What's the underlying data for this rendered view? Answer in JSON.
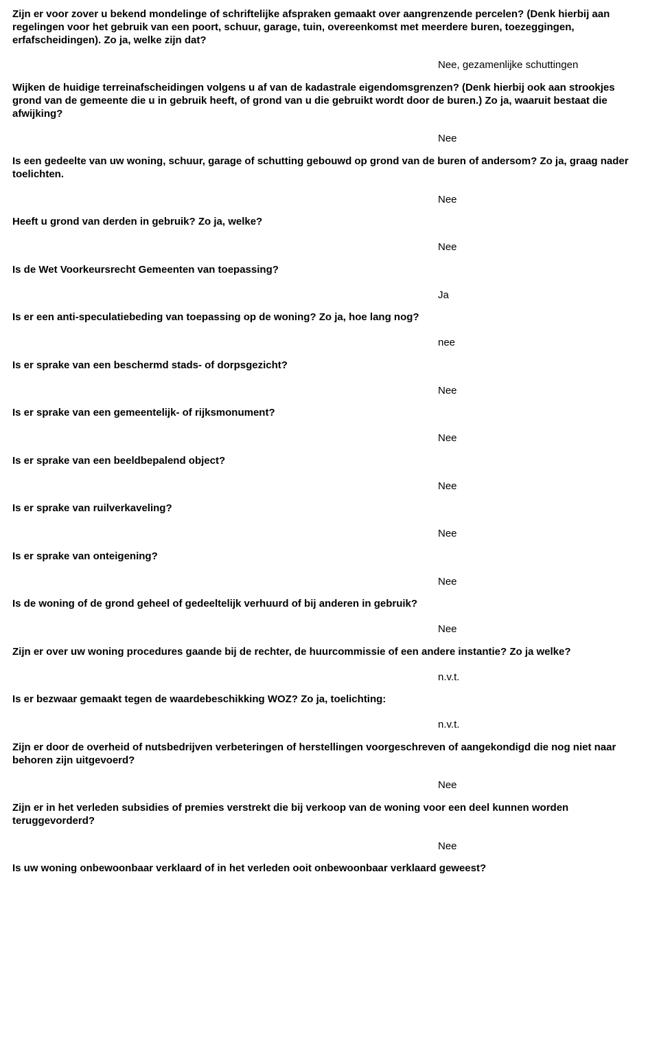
{
  "qa": [
    {
      "q": "Zijn er voor zover u bekend mondelinge of schriftelijke afspraken gemaakt over aangrenzende percelen? (Denk hierbij aan regelingen voor het gebruik van een poort, schuur, garage, tuin, overeenkomst met meerdere buren, toezeggingen, erfafscheidingen). Zo ja, welke zijn dat?",
      "a": "Nee, gezamenlijke schuttingen"
    },
    {
      "q": "Wijken de huidige terreinafscheidingen volgens u af van de kadastrale eigendomsgrenzen? (Denk hierbij ook aan strookjes grond van de gemeente die u in gebruik heeft, of grond van u die gebruikt wordt door de buren.) Zo ja, waaruit bestaat die afwijking?",
      "a": "Nee"
    },
    {
      "q": "Is een gedeelte van uw woning, schuur, garage of schutting gebouwd op grond van de buren of andersom? Zo ja, graag nader toelichten.",
      "a": "Nee"
    },
    {
      "q": "Heeft u grond van derden in gebruik? Zo ja, welke?",
      "a": "Nee"
    },
    {
      "q": "Is de Wet Voorkeursrecht Gemeenten van toepassing?",
      "a": "Ja"
    },
    {
      "q": "Is er een anti-speculatiebeding van toepassing op de woning? Zo ja, hoe lang nog?",
      "a": "nee"
    },
    {
      "q": "Is er sprake van een beschermd stads- of dorpsgezicht?",
      "a": "Nee"
    },
    {
      "q": "Is er sprake van een gemeentelijk- of rijksmonument?",
      "a": "Nee"
    },
    {
      "q": "Is er sprake van een beeldbepalend object?",
      "a": "Nee"
    },
    {
      "q": "Is er sprake van ruilverkaveling?",
      "a": "Nee"
    },
    {
      "q": "Is er sprake van onteigening?",
      "a": "Nee"
    },
    {
      "q": "Is de woning of de grond geheel of gedeeltelijk verhuurd of bij anderen in gebruik?",
      "a": "Nee"
    },
    {
      "q": "Zijn er over uw woning procedures gaande bij de rechter, de huurcommissie of een andere instantie? Zo ja welke?",
      "a": "n.v.t."
    },
    {
      "q": "Is er bezwaar gemaakt tegen de waardebeschikking WOZ? Zo ja, toelichting:",
      "a": "n.v.t."
    },
    {
      "q": "Zijn er door de overheid of nutsbedrijven verbeteringen of herstellingen voorgeschreven of aangekondigd die nog niet naar behoren zijn uitgevoerd?",
      "a": "Nee"
    },
    {
      "q": "Zijn er in het verleden subsidies of premies verstrekt die bij verkoop van de woning voor een deel kunnen worden teruggevorderd?",
      "a": "Nee"
    },
    {
      "q": "Is uw woning onbewoonbaar verklaard of in het verleden ooit onbewoonbaar verklaard geweest?",
      "a": ""
    }
  ]
}
